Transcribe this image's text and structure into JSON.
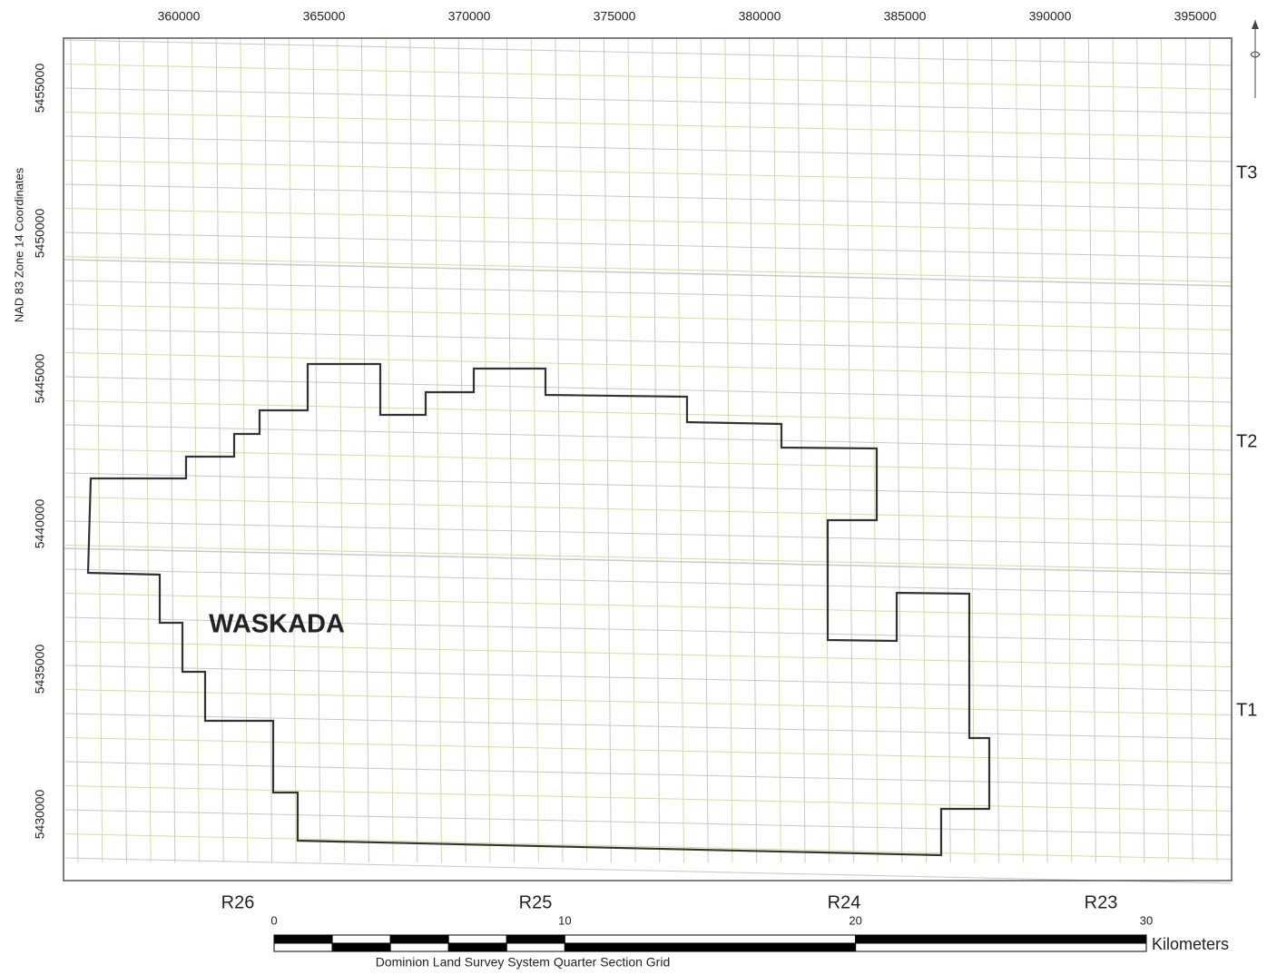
{
  "map": {
    "x_labels": [
      "360000",
      "365000",
      "370000",
      "375000",
      "380000",
      "385000",
      "390000",
      "395000"
    ],
    "y_labels": [
      "5455000",
      "5450000",
      "5445000",
      "5440000",
      "5435000",
      "5430000"
    ],
    "y_axis_title": "NAD 83 Zone 14 Coordinates",
    "township_labels": [
      "T3",
      "T2",
      "T1"
    ],
    "range_labels": [
      "R26",
      "R25",
      "R24",
      "R23"
    ],
    "area_label": "WASKADA",
    "scale_labels": [
      "0",
      "10",
      "20",
      "30"
    ],
    "scale_unit": "Kilometers",
    "caption": "Dominion Land Survey System Quarter Section Grid"
  }
}
